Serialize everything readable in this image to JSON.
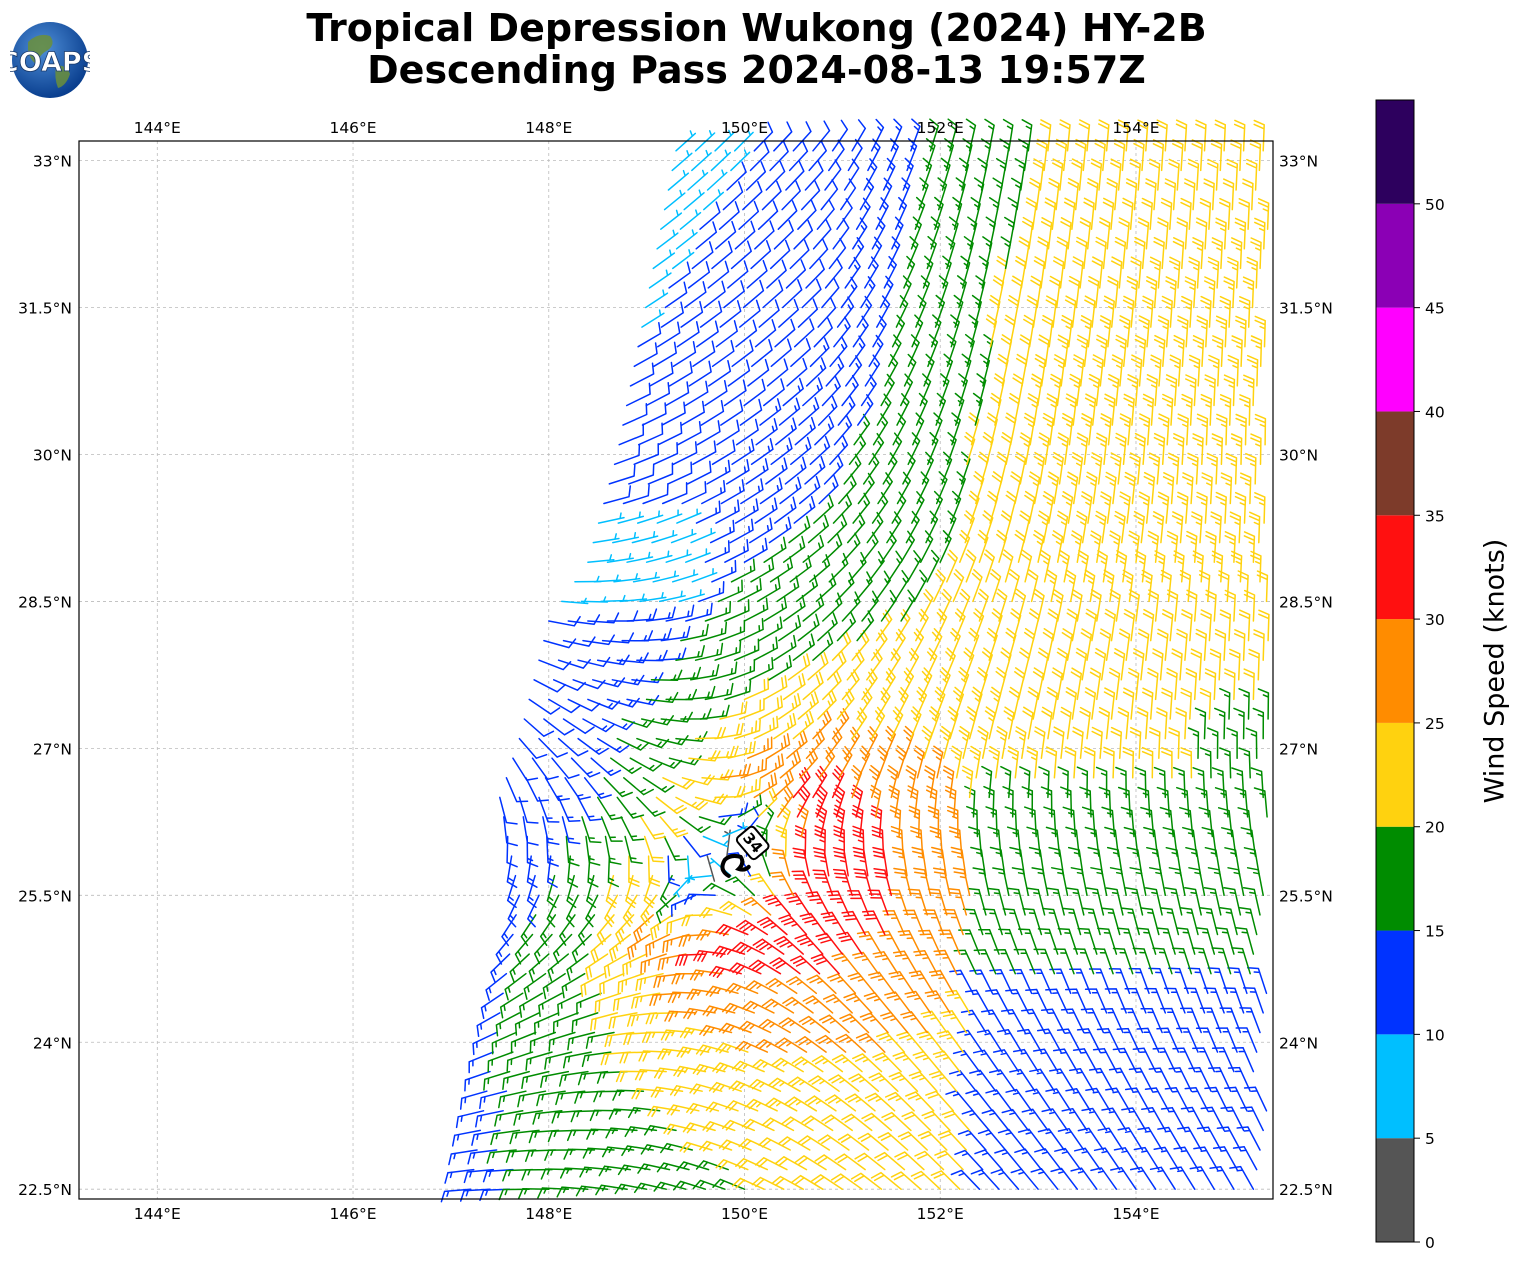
{
  "title": {
    "line1": "Tropical Depression Wukong (2024) HY-2B",
    "line2": "Descending Pass 2024-08-13 19:57Z"
  },
  "logo": {
    "text": "COAPS",
    "icon": "globe-logo"
  },
  "map": {
    "lon_range": [
      143.2,
      155.4
    ],
    "lat_range": [
      22.4,
      33.2
    ],
    "lon_ticks": [
      144,
      146,
      148,
      150,
      152,
      154
    ],
    "lon_tick_labels": [
      "144°E",
      "146°E",
      "148°E",
      "150°E",
      "152°E",
      "154°E"
    ],
    "lat_ticks": [
      22.5,
      24,
      25.5,
      27,
      28.5,
      30,
      31.5,
      33
    ],
    "lat_tick_labels": [
      "22.5°N",
      "24°N",
      "25.5°N",
      "27°N",
      "28.5°N",
      "30°N",
      "31.5°N",
      "33°N"
    ],
    "grid": true,
    "storm_center": {
      "lon": 149.9,
      "lat": 25.8
    },
    "storm_label": "34",
    "swath_west_edge": [
      [
        149.3,
        33.1
      ],
      [
        148.7,
        30.0
      ],
      [
        148.4,
        28.9
      ],
      [
        148.0,
        28.3
      ],
      [
        147.7,
        27.1
      ],
      [
        147.5,
        26.5
      ],
      [
        147.7,
        25.5
      ],
      [
        147.2,
        22.5
      ]
    ]
  },
  "colorbar": {
    "label": "Wind Speed (knots)",
    "ticks": [
      0,
      5,
      10,
      15,
      20,
      25,
      30,
      35,
      40,
      45,
      50
    ],
    "tick_labels": [
      "0",
      "5",
      "10",
      "15",
      "20",
      "25",
      "30",
      "35",
      "40",
      "45",
      "50"
    ],
    "max": 55,
    "bins": [
      {
        "min": 0,
        "max": 5,
        "color": "#555555"
      },
      {
        "min": 5,
        "max": 10,
        "color": "#00bfff"
      },
      {
        "min": 10,
        "max": 15,
        "color": "#0033ff"
      },
      {
        "min": 15,
        "max": 20,
        "color": "#008c00"
      },
      {
        "min": 20,
        "max": 25,
        "color": "#ffd20f"
      },
      {
        "min": 25,
        "max": 30,
        "color": "#ff8c00"
      },
      {
        "min": 30,
        "max": 35,
        "color": "#ff1010"
      },
      {
        "min": 35,
        "max": 40,
        "color": "#7d3b2a"
      },
      {
        "min": 40,
        "max": 45,
        "color": "#ff00ff"
      },
      {
        "min": 45,
        "max": 50,
        "color": "#8b00b5"
      },
      {
        "min": 50,
        "max": 55,
        "color": "#2d005e"
      }
    ]
  }
}
